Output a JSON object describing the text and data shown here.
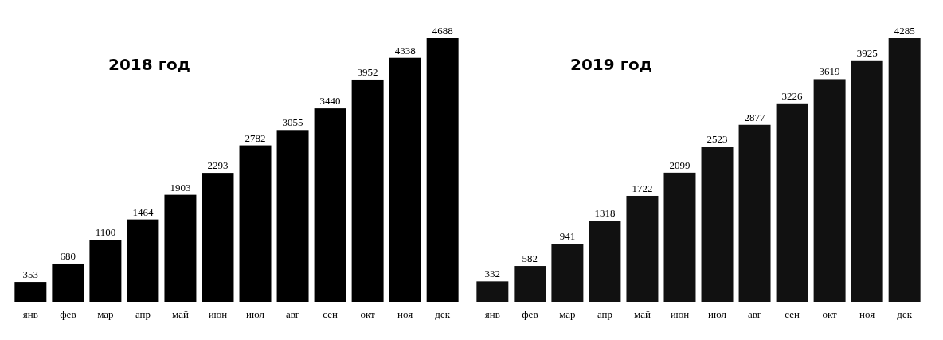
{
  "chart_data": [
    {
      "type": "bar",
      "title": "2018 год",
      "categories": [
        "янв",
        "фев",
        "мар",
        "апр",
        "май",
        "июн",
        "июл",
        "авг",
        "сен",
        "окт",
        "ноя",
        "дек"
      ],
      "values": [
        353,
        680,
        1100,
        1464,
        1903,
        2293,
        2782,
        3055,
        3440,
        3952,
        4338,
        4688
      ],
      "color": "#000000",
      "data_labels": true
    },
    {
      "type": "bar",
      "title": "2019 год",
      "categories": [
        "янв",
        "фев",
        "мар",
        "апр",
        "май",
        "июн",
        "июл",
        "авг",
        "сен",
        "окт",
        "ноя",
        "дек"
      ],
      "values": [
        332,
        582,
        941,
        1318,
        1722,
        2099,
        2523,
        2877,
        3226,
        3619,
        3925,
        4285
      ],
      "color": "#111111",
      "data_labels": true
    }
  ]
}
